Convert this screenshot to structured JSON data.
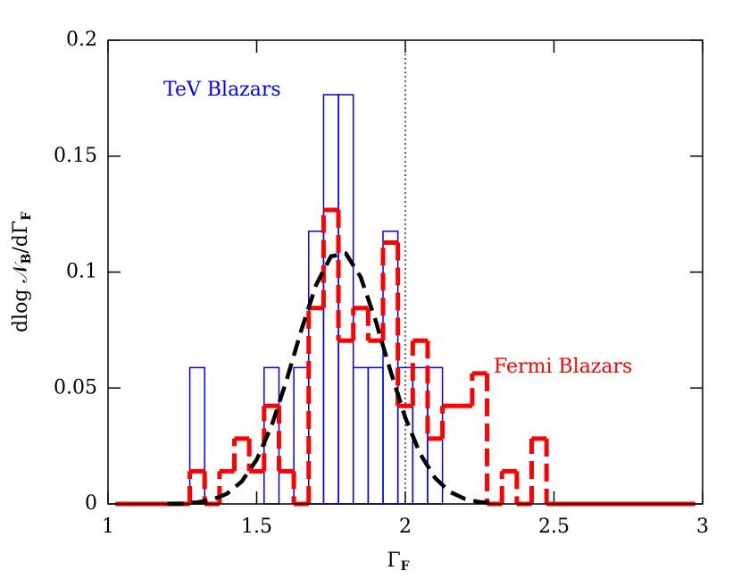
{
  "chart_data": {
    "type": "histogram",
    "bins": [
      1.025,
      1.075,
      1.125,
      1.175,
      1.225,
      1.275,
      1.325,
      1.375,
      1.425,
      1.475,
      1.525,
      1.575,
      1.625,
      1.675,
      1.725,
      1.775,
      1.825,
      1.875,
      1.925,
      1.975,
      2.025,
      2.075,
      2.125,
      2.175,
      2.225,
      2.275,
      2.325,
      2.375,
      2.425,
      2.475,
      2.525,
      2.575,
      2.625,
      2.675,
      2.725,
      2.775,
      2.825,
      2.875,
      2.925,
      2.975
    ],
    "series": [
      {
        "name": "TeV Blazars",
        "color": "#0000ff",
        "style": "solid",
        "values": [
          0,
          0,
          0,
          0,
          0,
          0.0588,
          0,
          0,
          0,
          0,
          0.0588,
          0,
          0.0588,
          0.1176,
          0.1765,
          0.1765,
          0.0588,
          0.0588,
          0.1176,
          0.0588,
          0.0588,
          0.0588,
          0,
          0,
          0,
          0,
          0,
          0,
          0,
          0,
          0,
          0,
          0,
          0,
          0,
          0,
          0,
          0,
          0
        ]
      },
      {
        "name": "Fermi Blazars",
        "color": "#ff0000",
        "style": "dashed",
        "values": [
          0,
          0,
          0,
          0,
          0,
          0.0141,
          0,
          0.0141,
          0.0282,
          0.0141,
          0.0423,
          0.0141,
          0,
          0.0845,
          0.1268,
          0.0704,
          0.0845,
          0.0704,
          0.1127,
          0.0423,
          0.0704,
          0.0282,
          0.0423,
          0.0423,
          0.0563,
          0,
          0.0141,
          0,
          0.0282,
          0,
          0,
          0,
          0,
          0,
          0,
          0,
          0,
          0,
          0
        ]
      }
    ],
    "curve": {
      "color": "#000000",
      "x": [
        1.2,
        1.25,
        1.3,
        1.35,
        1.4,
        1.45,
        1.5,
        1.55,
        1.6,
        1.65,
        1.7,
        1.75,
        1.8,
        1.85,
        1.9,
        1.95,
        2.0,
        2.05,
        2.1,
        2.15,
        2.2,
        2.25,
        2.3
      ],
      "values": [
        0.0001,
        0.0002,
        0.0007,
        0.0018,
        0.0044,
        0.0097,
        0.0191,
        0.0336,
        0.0531,
        0.0749,
        0.0945,
        0.1068,
        0.108,
        0.0978,
        0.0791,
        0.0574,
        0.0372,
        0.0216,
        0.0112,
        0.0052,
        0.0022,
        0.0008,
        0.0003
      ]
    },
    "vline": 2,
    "xlim": [
      1,
      3
    ],
    "xticks": [
      1,
      1.5,
      2,
      2.5,
      3
    ],
    "ylim": [
      0,
      0.2
    ],
    "yticks": [
      0,
      0.05,
      0.1,
      0.15,
      0.2
    ],
    "xlabel": {
      "text": "Γ",
      "sub": "F"
    },
    "ylabel": [
      {
        "text": "dlog 𝒩",
        "sub": "B"
      },
      {
        "text": "/dΓ",
        "sub": "F"
      }
    ]
  }
}
